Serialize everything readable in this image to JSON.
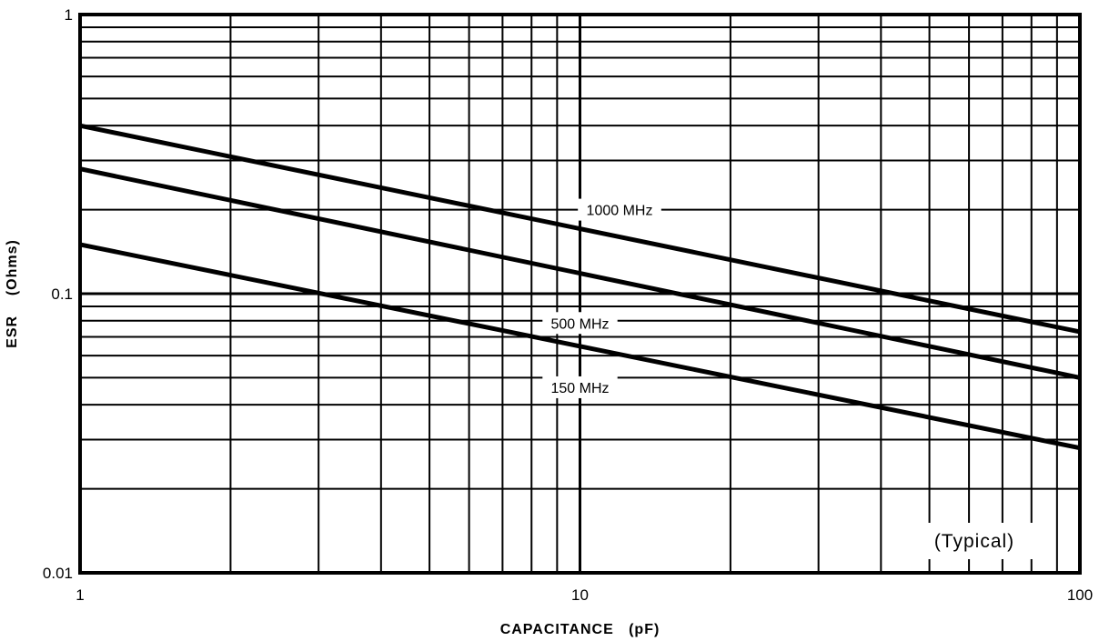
{
  "chart_data": {
    "type": "line",
    "x_scale": "log",
    "y_scale": "log",
    "xlim": [
      1,
      100
    ],
    "ylim": [
      0.01,
      1
    ],
    "grid": true,
    "xlabel": "CAPACITANCE   (pF)",
    "ylabel": "ESR    (Ohms)",
    "annotation": "(Typical)",
    "x_ticks": [
      {
        "value": 1,
        "label": "1"
      },
      {
        "value": 10,
        "label": "10"
      },
      {
        "value": 100,
        "label": "100"
      }
    ],
    "y_ticks": [
      {
        "value": 0.01,
        "label": "0.01"
      },
      {
        "value": 0.1,
        "label": "0.1"
      },
      {
        "value": 1,
        "label": "1"
      }
    ],
    "series": [
      {
        "name": "1000 MHz",
        "x": [
          1,
          100
        ],
        "y": [
          0.4,
          0.073
        ]
      },
      {
        "name": "500 MHz",
        "x": [
          1,
          100
        ],
        "y": [
          0.28,
          0.05
        ]
      },
      {
        "name": "150 MHz",
        "x": [
          1,
          100
        ],
        "y": [
          0.15,
          0.028
        ]
      }
    ]
  }
}
